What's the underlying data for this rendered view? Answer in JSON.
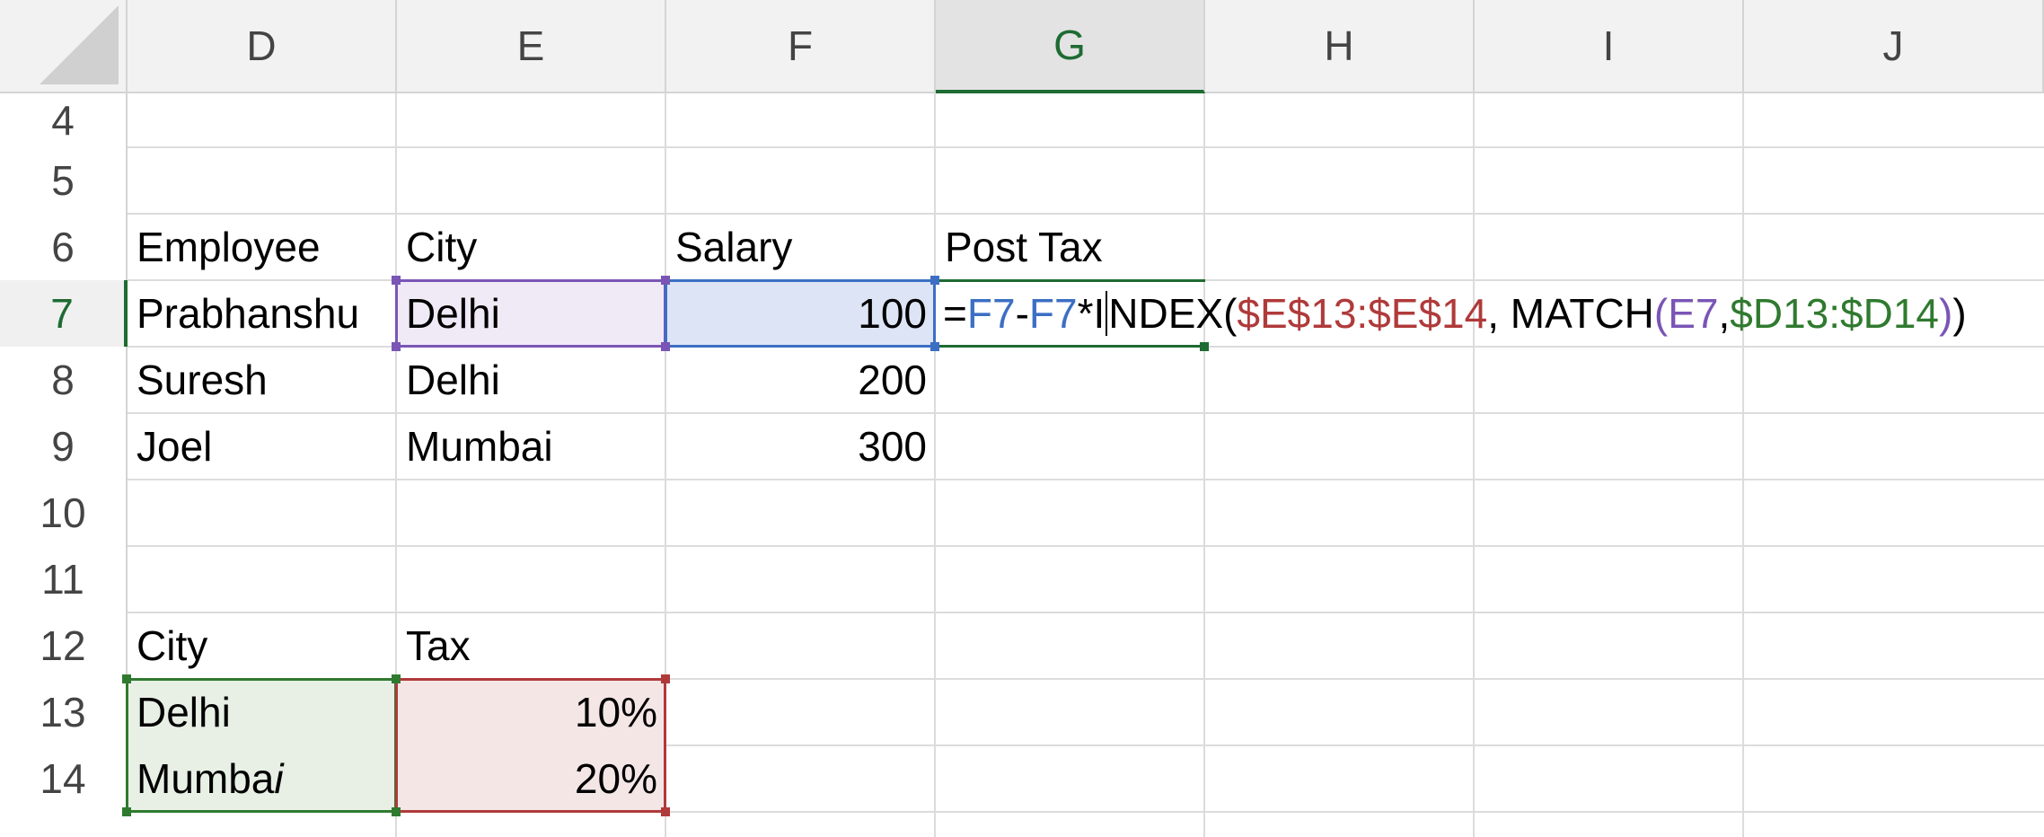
{
  "columns": [
    "D",
    "E",
    "F",
    "G",
    "H",
    "I",
    "J"
  ],
  "active_column": "G",
  "rows": [
    "4",
    "5",
    "6",
    "7",
    "8",
    "9",
    "10",
    "11",
    "12",
    "13",
    "14"
  ],
  "active_row": "7",
  "cells": {
    "D6": "Employee",
    "E6": "City",
    "F6": "Salary",
    "G6": "Post Tax",
    "D7": "Prabhanshu",
    "E7": "Delhi",
    "F7": "100",
    "D8": "Suresh",
    "E8": "Delhi",
    "F8": "200",
    "D9": "Joel",
    "E9": "Mumbai",
    "F9": "300",
    "D12": "City",
    "E12": "Tax",
    "D13": "Delhi",
    "E13": "10%",
    "D14_prefix": "Mumba",
    "D14_italic": "i",
    "E14": "20%"
  },
  "formula": {
    "eq": "=",
    "ref1": "F7",
    "minus": "-",
    "ref2": "F7",
    "times": "*I",
    "index": "NDEX(",
    "range1": "$E$13:$E$14",
    "sep1": ", MATCH",
    "paren_open": "(",
    "ref3": "E7",
    "comma": ",",
    "range2": "$D13:$D14",
    "paren_close": ")",
    "end": ")"
  },
  "colors": {
    "header_bg": "#f2f2f2",
    "active_green": "#1e6b33",
    "ref_blue": "#3c6fc4",
    "ref_purple": "#7a55b5",
    "ref_red": "#b03a3a",
    "ref_green": "#2f7a2f"
  }
}
